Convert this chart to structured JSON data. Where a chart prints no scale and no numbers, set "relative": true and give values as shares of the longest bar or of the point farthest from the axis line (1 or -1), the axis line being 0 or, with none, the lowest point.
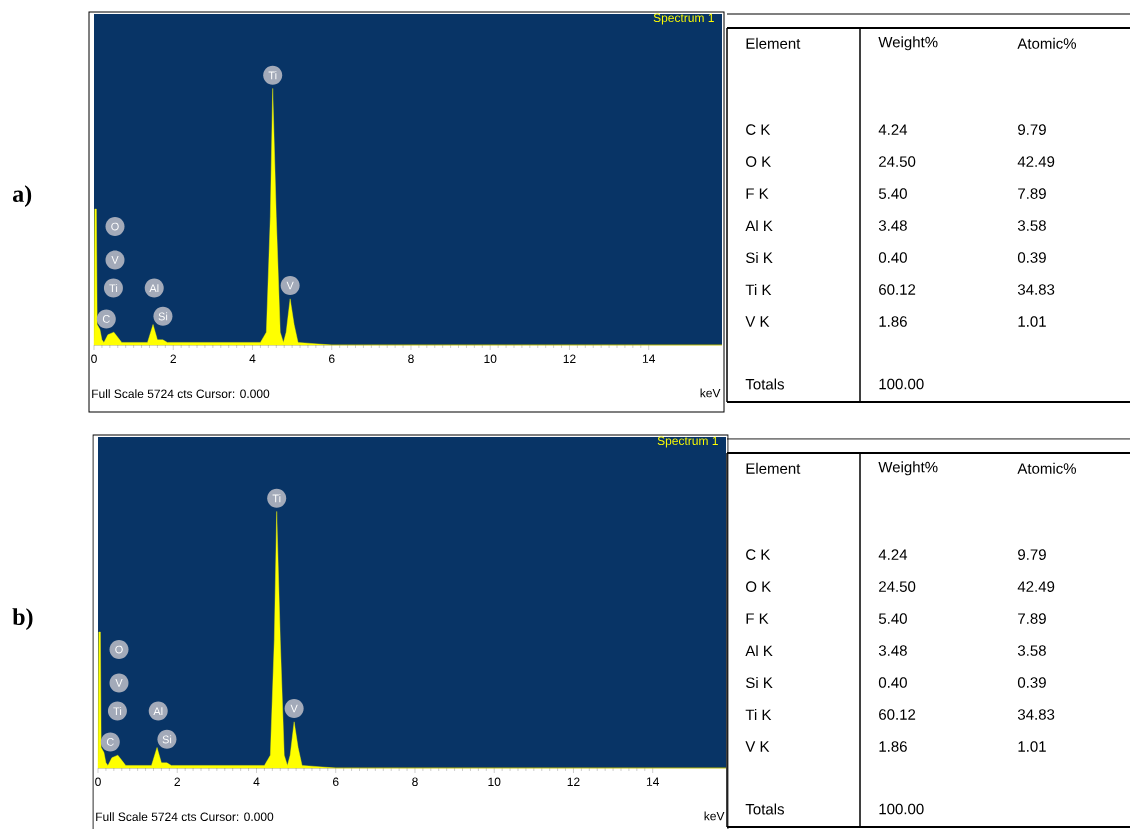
{
  "chart_data": [
    {
      "type": "area",
      "relative": true,
      "title": "Spectrum 1",
      "xlabel": "keV",
      "color": "#ffff00",
      "x": [
        0,
        0.02,
        0.06,
        0.08,
        0.15,
        0.2,
        0.25,
        0.35,
        0.5,
        0.6,
        0.7,
        1.0,
        1.35,
        1.49,
        1.6,
        1.74,
        1.85,
        2.5,
        4.2,
        4.35,
        4.45,
        4.51,
        4.6,
        4.7,
        4.78,
        4.85,
        4.95,
        5.05,
        5.15,
        6,
        15.85
      ],
      "values": [
        0,
        0.53,
        0.53,
        0.08,
        0.06,
        0.02,
        0.01,
        0.04,
        0.05,
        0.03,
        0.01,
        0.01,
        0.01,
        0.08,
        0.02,
        0.02,
        0.01,
        0.01,
        0.01,
        0.05,
        0.5,
        1,
        0.5,
        0.05,
        0.01,
        0.05,
        0.18,
        0.08,
        0.01,
        0,
        0
      ],
      "xlim": [
        0,
        15.85
      ],
      "xticks": [
        {
          "value": 0,
          "label": "0"
        },
        2,
        4,
        6,
        8,
        10,
        12,
        14
      ],
      "annotations": [
        "O",
        "V",
        "Ti",
        "C",
        "Al",
        "Si",
        "Ti",
        "V",
        "Full Scale 5724 cts Cursor: 0.000",
        "a)"
      ]
    },
    {
      "type": "other",
      "annotations": [
        "Element",
        "Weight%",
        "Atomic%",
        "C K",
        "4.24",
        "9.79",
        "O K",
        "24.50",
        "42.49",
        "F K",
        "5.40",
        "7.89",
        "Al K",
        "3.48",
        "3.58",
        "Si K",
        "0.40",
        "0.39",
        "Ti K",
        "60.12",
        "34.83",
        "V K",
        "1.86",
        "1.01",
        "Totals",
        "100.00"
      ]
    },
    {
      "type": "area",
      "relative": true,
      "title": "Spectrum 1",
      "xlabel": "keV",
      "color": "#ffff00",
      "x": [
        0,
        0.02,
        0.06,
        0.08,
        0.15,
        0.2,
        0.25,
        0.35,
        0.5,
        0.6,
        0.7,
        1.0,
        1.35,
        1.49,
        1.6,
        1.74,
        1.85,
        2.5,
        4.2,
        4.35,
        4.45,
        4.51,
        4.6,
        4.7,
        4.78,
        4.85,
        4.95,
        5.05,
        5.15,
        6,
        15.85
      ],
      "values": [
        0,
        0.53,
        0.53,
        0.08,
        0.06,
        0.02,
        0.01,
        0.04,
        0.05,
        0.03,
        0.01,
        0.01,
        0.01,
        0.08,
        0.02,
        0.02,
        0.01,
        0.01,
        0.01,
        0.05,
        0.5,
        1,
        0.5,
        0.05,
        0.01,
        0.05,
        0.18,
        0.08,
        0.01,
        0,
        0
      ],
      "xlim": [
        0,
        15.85
      ],
      "xticks": [
        {
          "value": 0,
          "label": "0"
        },
        2,
        4,
        6,
        8,
        10,
        12,
        14
      ],
      "annotations": [
        "O",
        "V",
        "Ti",
        "C",
        "Al",
        "Si",
        "Ti",
        "V",
        "Full Scale 5724 cts Cursor: 0.000",
        "b)"
      ]
    },
    {
      "type": "other",
      "annotations": [
        "Element",
        "Weight%",
        "Atomic%",
        "C K",
        "4.24",
        "9.79",
        "O K",
        "24.50",
        "42.49",
        "F K",
        "5.40",
        "7.89",
        "Al K",
        "3.48",
        "3.58",
        "Si K",
        "0.40",
        "0.39",
        "Ti K",
        "60.12",
        "34.83",
        "V K",
        "1.86",
        "1.01",
        "Totals",
        "100.00"
      ]
    }
  ]
}
